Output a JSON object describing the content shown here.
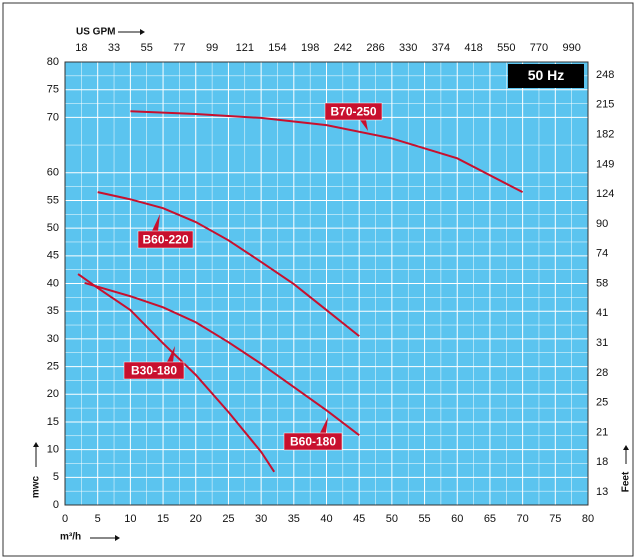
{
  "chart_data": {
    "type": "line",
    "badge": "50 Hz",
    "x_label": "m³/h",
    "y_label": "mwc",
    "y2_label": "Feet",
    "top_axis_label": "US GPM",
    "top_axis_labels": [
      "18",
      "33",
      "55",
      "77",
      "99",
      "121",
      "154",
      "198",
      "242",
      "286",
      "330",
      "374",
      "418",
      "550",
      "770",
      "990"
    ],
    "y2_labels": [
      "248",
      "215",
      "182",
      "149",
      "124",
      "90",
      "74",
      "58",
      "41",
      "31",
      "28",
      "25",
      "21",
      "18",
      "13"
    ],
    "xlim": [
      0,
      80
    ],
    "xticks": [
      0,
      5,
      10,
      15,
      20,
      25,
      30,
      35,
      40,
      45,
      50,
      55,
      60,
      65,
      70,
      75,
      80
    ],
    "ylim": [
      0,
      80
    ],
    "yticks": [
      0,
      5,
      10,
      15,
      20,
      25,
      30,
      35,
      40,
      45,
      50,
      55,
      60,
      70,
      75,
      80
    ],
    "grid": true,
    "background": "#5bc4ef",
    "series": [
      {
        "name": "B70-250",
        "color": "#c8102e",
        "x": [
          10,
          20,
          30,
          40,
          50,
          60,
          70
        ],
        "values": [
          71.1,
          70.6,
          69.9,
          68.6,
          66.2,
          62.6,
          56.5
        ]
      },
      {
        "name": "B60-220",
        "color": "#c8102e",
        "x": [
          5,
          10,
          15,
          20,
          25,
          30,
          35,
          40,
          45
        ],
        "values": [
          56.5,
          55.2,
          53.6,
          51.1,
          47.8,
          43.9,
          39.9,
          35.2,
          30.5
        ]
      },
      {
        "name": "B30-180",
        "color": "#c8102e",
        "x": [
          2,
          5,
          10,
          15,
          20,
          25,
          30,
          32
        ],
        "values": [
          41.7,
          39.2,
          35.2,
          29.2,
          23.5,
          16.8,
          9.6,
          6
        ]
      },
      {
        "name": "B60-180",
        "color": "#c8102e",
        "x": [
          3,
          10,
          15,
          20,
          25,
          30,
          35,
          40,
          45
        ],
        "values": [
          40.1,
          37.7,
          35.7,
          33,
          29.4,
          25.5,
          21.3,
          17.1,
          12.6
        ]
      }
    ]
  }
}
